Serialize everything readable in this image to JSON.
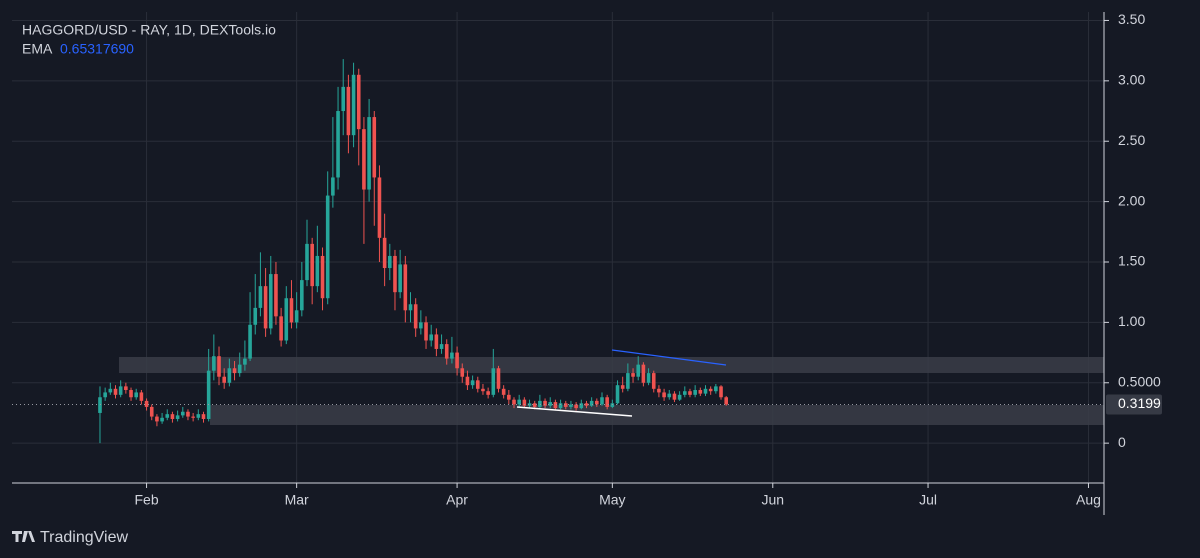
{
  "chart_data": {
    "type": "candlestick",
    "title": "HAGGORD/USD - RAY, 1D, DEXTools.io",
    "indicator": {
      "name": "EMA",
      "value": {
        "value": 0.6531769,
        "label": "0.65317690"
      }
    },
    "watermark": "TradingView",
    "up_color": "#26a69a",
    "down_color": "#ef5350",
    "open": [
      0.25,
      0.38,
      0.42,
      0.45,
      0.4,
      0.47,
      0.44,
      0.38,
      0.42,
      0.35,
      0.3,
      0.22,
      0.18,
      0.21,
      0.24,
      0.2,
      0.23,
      0.26,
      0.22,
      0.21,
      0.24,
      0.2,
      0.6,
      0.72,
      0.55,
      0.5,
      0.62,
      0.58,
      0.65,
      0.7,
      0.98,
      1.12,
      1.3,
      0.95,
      1.4,
      1.05,
      0.85,
      1.2,
      1.0,
      1.1,
      1.35,
      1.65,
      1.3,
      1.55,
      1.2,
      2.05,
      2.2,
      2.75,
      2.95,
      2.55,
      3.05,
      2.6,
      2.1,
      2.7,
      2.2,
      1.7,
      1.45,
      1.55,
      1.25,
      1.48,
      1.1,
      1.15,
      0.95,
      1.0,
      0.85,
      0.9,
      0.78,
      0.82,
      0.7,
      0.75,
      0.62,
      0.55,
      0.48,
      0.52,
      0.45,
      0.43,
      0.4,
      0.62,
      0.45,
      0.4,
      0.36,
      0.32,
      0.36,
      0.31,
      0.33,
      0.3,
      0.35,
      0.31,
      0.34,
      0.29,
      0.33,
      0.3,
      0.32,
      0.29,
      0.33,
      0.31,
      0.35,
      0.32,
      0.38,
      0.3,
      0.33,
      0.48,
      0.45,
      0.58,
      0.55,
      0.65,
      0.5,
      0.58,
      0.45,
      0.42,
      0.38,
      0.41,
      0.36,
      0.4,
      0.43,
      0.4,
      0.44,
      0.41,
      0.45,
      0.43,
      0.47,
      0.38
    ],
    "high": [
      0.47,
      0.46,
      0.5,
      0.48,
      0.52,
      0.5,
      0.46,
      0.45,
      0.44,
      0.37,
      0.32,
      0.24,
      0.25,
      0.28,
      0.26,
      0.27,
      0.3,
      0.28,
      0.25,
      0.28,
      0.26,
      0.78,
      0.9,
      0.8,
      0.62,
      0.7,
      0.68,
      0.75,
      0.85,
      1.25,
      1.4,
      1.58,
      1.45,
      1.55,
      1.5,
      1.12,
      1.3,
      1.35,
      1.25,
      1.5,
      1.85,
      1.7,
      1.8,
      1.62,
      2.25,
      2.7,
      2.95,
      3.18,
      3.05,
      3.15,
      3.1,
      2.7,
      2.85,
      2.75,
      2.3,
      1.9,
      1.65,
      1.6,
      1.6,
      1.55,
      1.25,
      1.2,
      1.1,
      1.05,
      0.98,
      0.95,
      0.9,
      0.86,
      0.88,
      0.8,
      0.66,
      0.6,
      0.56,
      0.55,
      0.49,
      0.46,
      0.78,
      0.64,
      0.48,
      0.44,
      0.38,
      0.4,
      0.38,
      0.36,
      0.35,
      0.4,
      0.37,
      0.38,
      0.36,
      0.36,
      0.35,
      0.35,
      0.34,
      0.36,
      0.35,
      0.38,
      0.37,
      0.42,
      0.4,
      0.36,
      0.52,
      0.55,
      0.66,
      0.62,
      0.72,
      0.67,
      0.62,
      0.6,
      0.48,
      0.45,
      0.44,
      0.43,
      0.43,
      0.47,
      0.45,
      0.48,
      0.46,
      0.48,
      0.47,
      0.49,
      0.48,
      0.39
    ],
    "low": [
      0.0,
      0.35,
      0.4,
      0.37,
      0.38,
      0.41,
      0.35,
      0.36,
      0.32,
      0.27,
      0.19,
      0.14,
      0.16,
      0.19,
      0.17,
      0.18,
      0.21,
      0.19,
      0.18,
      0.19,
      0.17,
      0.18,
      0.52,
      0.48,
      0.45,
      0.47,
      0.52,
      0.55,
      0.6,
      0.68,
      0.9,
      1.05,
      0.88,
      0.9,
      0.98,
      0.8,
      0.82,
      0.95,
      0.95,
      1.05,
      1.3,
      1.15,
      1.25,
      1.1,
      1.15,
      1.95,
      2.1,
      2.55,
      2.4,
      2.45,
      2.3,
      1.65,
      2.0,
      1.8,
      1.5,
      1.3,
      1.35,
      1.1,
      1.2,
      1.0,
      1.0,
      0.88,
      0.9,
      0.78,
      0.8,
      0.72,
      0.74,
      0.65,
      0.66,
      0.56,
      0.5,
      0.44,
      0.45,
      0.42,
      0.4,
      0.37,
      0.38,
      0.42,
      0.37,
      0.32,
      0.29,
      0.3,
      0.29,
      0.29,
      0.28,
      0.29,
      0.29,
      0.29,
      0.27,
      0.28,
      0.28,
      0.28,
      0.27,
      0.28,
      0.29,
      0.3,
      0.3,
      0.31,
      0.28,
      0.29,
      0.32,
      0.42,
      0.43,
      0.5,
      0.52,
      0.47,
      0.48,
      0.42,
      0.38,
      0.35,
      0.36,
      0.34,
      0.35,
      0.38,
      0.38,
      0.38,
      0.39,
      0.39,
      0.4,
      0.41,
      0.36,
      0.31
    ],
    "close": [
      0.38,
      0.42,
      0.45,
      0.4,
      0.47,
      0.44,
      0.38,
      0.42,
      0.35,
      0.3,
      0.22,
      0.18,
      0.21,
      0.24,
      0.2,
      0.23,
      0.26,
      0.22,
      0.21,
      0.24,
      0.2,
      0.6,
      0.72,
      0.55,
      0.5,
      0.62,
      0.58,
      0.65,
      0.7,
      0.98,
      1.12,
      1.3,
      0.95,
      1.4,
      1.05,
      0.85,
      1.2,
      1.0,
      1.1,
      1.35,
      1.65,
      1.3,
      1.55,
      1.2,
      2.05,
      2.2,
      2.75,
      2.95,
      2.55,
      3.05,
      2.6,
      2.1,
      2.7,
      2.2,
      1.7,
      1.45,
      1.55,
      1.25,
      1.48,
      1.1,
      1.15,
      0.95,
      1.0,
      0.85,
      0.9,
      0.78,
      0.82,
      0.7,
      0.75,
      0.62,
      0.55,
      0.48,
      0.52,
      0.45,
      0.43,
      0.4,
      0.62,
      0.45,
      0.4,
      0.36,
      0.32,
      0.36,
      0.31,
      0.33,
      0.3,
      0.35,
      0.31,
      0.34,
      0.29,
      0.33,
      0.3,
      0.32,
      0.29,
      0.33,
      0.31,
      0.35,
      0.32,
      0.38,
      0.3,
      0.33,
      0.48,
      0.45,
      0.58,
      0.55,
      0.65,
      0.5,
      0.58,
      0.45,
      0.42,
      0.38,
      0.41,
      0.36,
      0.4,
      0.43,
      0.4,
      0.44,
      0.41,
      0.45,
      0.43,
      0.47,
      0.38,
      0.3199
    ],
    "last_price": 0.3199,
    "xlim": [
      -17,
      194
    ],
    "xticks": [
      {
        "value": 9,
        "label": "Feb"
      },
      {
        "value": 38,
        "label": "Mar"
      },
      {
        "value": 69,
        "label": "Apr"
      },
      {
        "value": 99,
        "label": "May"
      },
      {
        "value": 130,
        "label": "Jun"
      },
      {
        "value": 160,
        "label": "Jul"
      },
      {
        "value": 191,
        "label": "Aug"
      }
    ],
    "ylim": [
      -0.33,
      3.57
    ],
    "yticks": [
      0,
      {
        "value": 0.5,
        "label": "0.5000"
      },
      {
        "value": 1,
        "label": "1.00"
      },
      {
        "value": 1.5,
        "label": "1.50"
      },
      {
        "value": 2,
        "label": "2.00"
      },
      {
        "value": 2.5,
        "label": "2.50"
      },
      {
        "value": 3,
        "label": "3.00"
      },
      {
        "value": 3.5,
        "label": "3.50"
      }
    ],
    "grid": true
  }
}
